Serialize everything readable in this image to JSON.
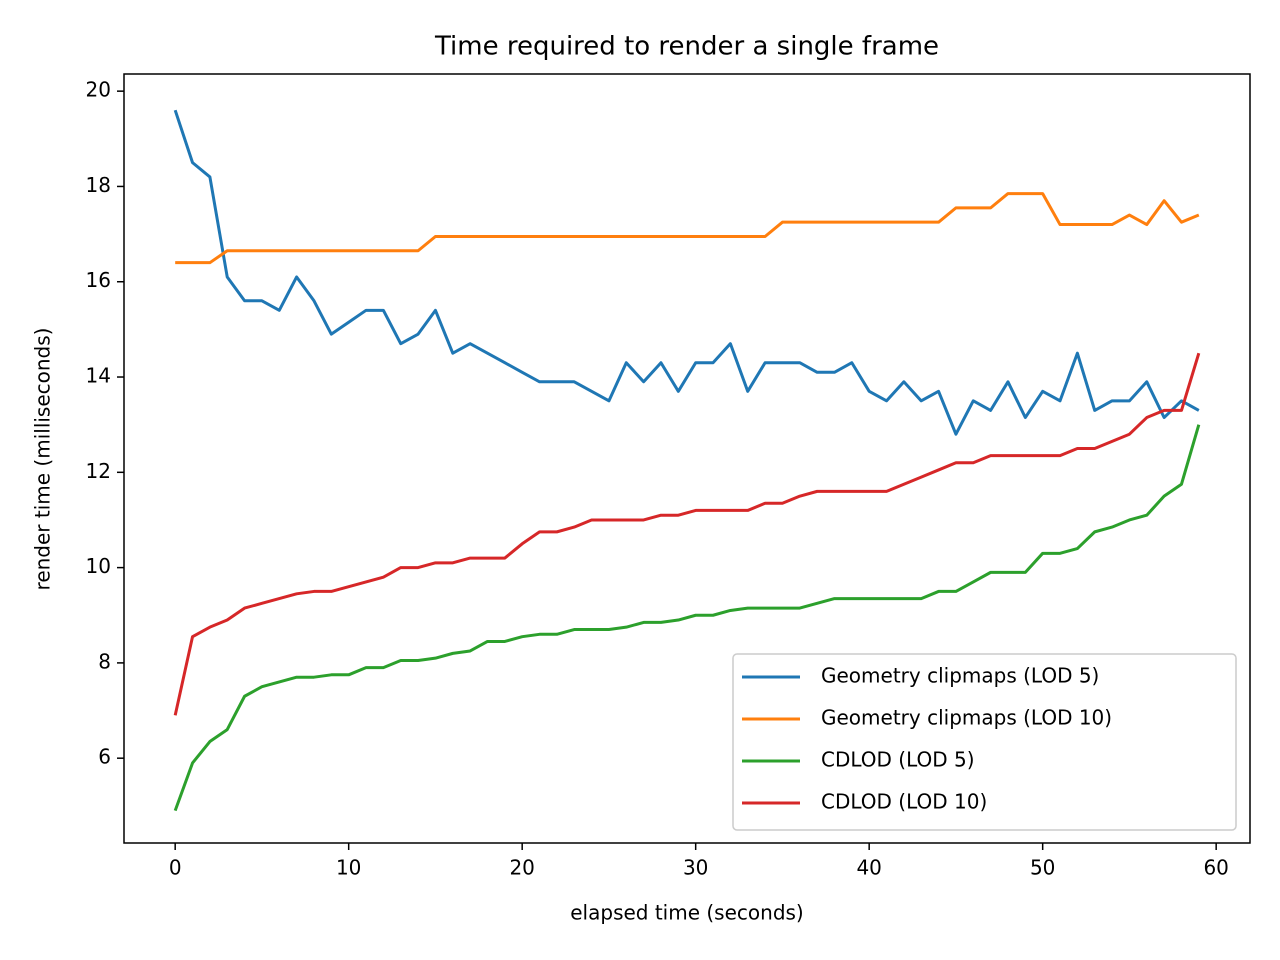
{
  "chart_data": {
    "type": "line",
    "title": "Time required to render a single frame",
    "x_label": "elapsed time (seconds)",
    "y_label": "render time (milliseconds)",
    "x": [
      0,
      1,
      2,
      3,
      4,
      5,
      6,
      7,
      8,
      9,
      10,
      11,
      12,
      13,
      14,
      15,
      16,
      17,
      18,
      19,
      20,
      21,
      22,
      23,
      24,
      25,
      26,
      27,
      28,
      29,
      30,
      31,
      32,
      33,
      34,
      35,
      36,
      37,
      38,
      39,
      40,
      41,
      42,
      43,
      44,
      45,
      46,
      47,
      48,
      49,
      50,
      51,
      52,
      53,
      54,
      55,
      56,
      57,
      58,
      59
    ],
    "series": [
      {
        "name": "Geometry clipmaps (LOD 5)",
        "color": "#1f77b4",
        "values": [
          19.6,
          18.5,
          18.2,
          16.1,
          15.6,
          15.6,
          15.4,
          16.1,
          15.6,
          14.9,
          15.15,
          15.4,
          15.4,
          14.7,
          14.9,
          15.4,
          14.5,
          14.7,
          14.5,
          14.3,
          14.1,
          13.9,
          13.9,
          13.9,
          13.7,
          13.5,
          14.3,
          13.9,
          14.3,
          13.7,
          14.3,
          14.3,
          14.7,
          13.7,
          14.3,
          14.3,
          14.3,
          14.1,
          14.1,
          14.3,
          13.7,
          13.5,
          13.9,
          13.5,
          13.7,
          12.8,
          13.5,
          13.3,
          13.9,
          13.15,
          13.7,
          13.5,
          14.5,
          13.3,
          13.5,
          13.5,
          13.9,
          13.15,
          13.5,
          13.3
        ]
      },
      {
        "name": "Geometry clipmaps (LOD 10)",
        "color": "#ff7f0e",
        "values": [
          16.4,
          16.4,
          16.4,
          16.65,
          16.65,
          16.65,
          16.65,
          16.65,
          16.65,
          16.65,
          16.65,
          16.65,
          16.65,
          16.65,
          16.65,
          16.95,
          16.95,
          16.95,
          16.95,
          16.95,
          16.95,
          16.95,
          16.95,
          16.95,
          16.95,
          16.95,
          16.95,
          16.95,
          16.95,
          16.95,
          16.95,
          16.95,
          16.95,
          16.95,
          16.95,
          17.25,
          17.25,
          17.25,
          17.25,
          17.25,
          17.25,
          17.25,
          17.25,
          17.25,
          17.25,
          17.55,
          17.55,
          17.55,
          17.85,
          17.85,
          17.85,
          17.2,
          17.2,
          17.2,
          17.2,
          17.4,
          17.2,
          17.7,
          17.25,
          17.4
        ]
      },
      {
        "name": "CDLOD (LOD 5)",
        "color": "#2ca02c",
        "values": [
          4.9,
          5.9,
          6.35,
          6.6,
          7.3,
          7.5,
          7.6,
          7.7,
          7.7,
          7.75,
          7.75,
          7.9,
          7.9,
          8.05,
          8.05,
          8.1,
          8.2,
          8.25,
          8.45,
          8.45,
          8.55,
          8.6,
          8.6,
          8.7,
          8.7,
          8.7,
          8.75,
          8.85,
          8.85,
          8.9,
          9.0,
          9.0,
          9.1,
          9.15,
          9.15,
          9.15,
          9.15,
          9.25,
          9.35,
          9.35,
          9.35,
          9.35,
          9.35,
          9.35,
          9.5,
          9.5,
          9.7,
          9.9,
          9.9,
          9.9,
          10.3,
          10.3,
          10.4,
          10.75,
          10.85,
          11.0,
          11.1,
          11.5,
          11.75,
          13.0
        ]
      },
      {
        "name": "CDLOD (LOD 10)",
        "color": "#d62728",
        "values": [
          6.9,
          8.55,
          8.75,
          8.9,
          9.15,
          9.25,
          9.35,
          9.45,
          9.5,
          9.5,
          9.6,
          9.7,
          9.8,
          10.0,
          10.0,
          10.1,
          10.1,
          10.2,
          10.2,
          10.2,
          10.5,
          10.75,
          10.75,
          10.85,
          11.0,
          11.0,
          11.0,
          11.0,
          11.1,
          11.1,
          11.2,
          11.2,
          11.2,
          11.2,
          11.35,
          11.35,
          11.5,
          11.6,
          11.6,
          11.6,
          11.6,
          11.6,
          11.75,
          11.9,
          12.05,
          12.2,
          12.2,
          12.35,
          12.35,
          12.35,
          12.35,
          12.35,
          12.5,
          12.5,
          12.65,
          12.8,
          13.15,
          13.3,
          13.3,
          14.5
        ]
      }
    ],
    "xlim": [
      -2.95,
      61.95
    ],
    "xticks": [
      0,
      10,
      20,
      30,
      40,
      50,
      60
    ],
    "ylim": [
      4.22,
      20.36
    ],
    "yticks": [
      6,
      8,
      10,
      12,
      14,
      16,
      18,
      20
    ],
    "legend": "lower right",
    "grid": false
  }
}
